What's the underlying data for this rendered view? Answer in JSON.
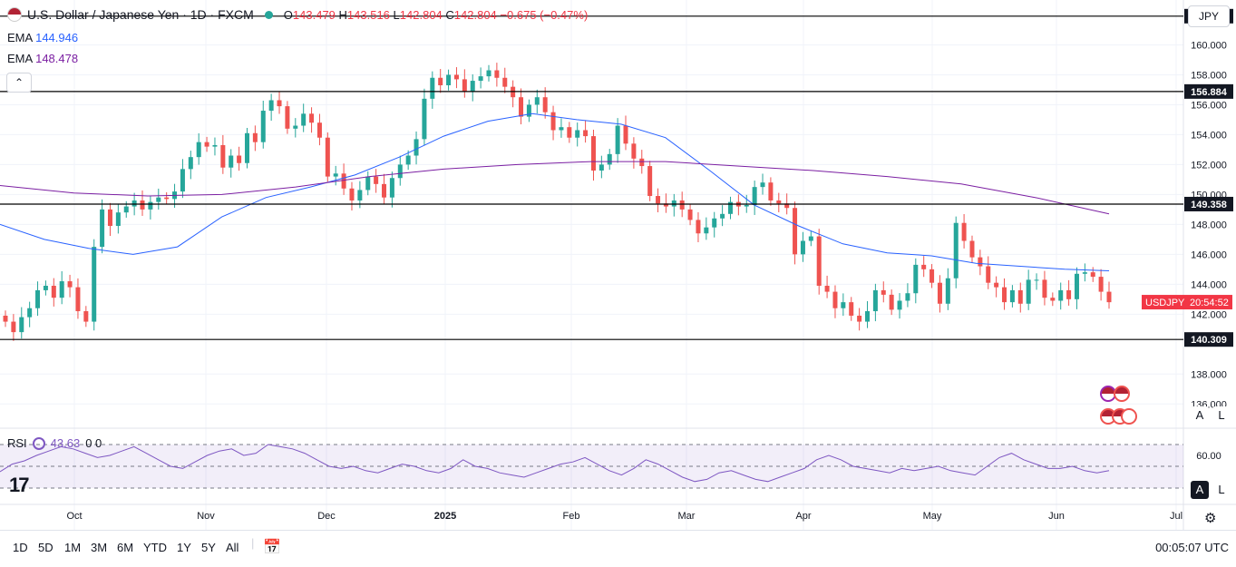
{
  "header": {
    "symbol_title": "U.S. Dollar / Japanese Yen · 1D · FXCM",
    "open_label": "O",
    "open": "143.479",
    "high_label": "H",
    "high": "143.516",
    "low_label": "L",
    "low": "142.804",
    "close_label": "C",
    "close": "142.804",
    "change": "−0.675 (−0.47%)"
  },
  "indicators": [
    {
      "name": "EMA",
      "value": "144.946",
      "color": "#2962ff"
    },
    {
      "name": "EMA",
      "value": "148.478",
      "color": "#7b1fa2"
    }
  ],
  "rsi": {
    "name": "RSI",
    "value": "43.63",
    "extra": "0 0",
    "color": "#7e57c2",
    "scale_label": "60.00"
  },
  "currency_button": "JPY",
  "collapse_glyph": "⌃",
  "scale_buttons": {
    "auto": "A",
    "log": "L"
  },
  "symbol_badge": {
    "symbol": "USDJPY",
    "countdown": "20:54:52"
  },
  "toolbar": {
    "ranges": [
      "1D",
      "5D",
      "1M",
      "3M",
      "6M",
      "YTD",
      "1Y",
      "5Y",
      "All"
    ],
    "clock": "00:05:07 UTC"
  },
  "logo": "17",
  "chart_data": {
    "type": "candlestick",
    "title": "U.S. Dollar / Japanese Yen",
    "y_axis": {
      "ylim": [
        134.5,
        163.0
      ],
      "tick_labels": [
        "160.000",
        "158.000",
        "156.000",
        "154.000",
        "152.000",
        "150.000",
        "148.000",
        "146.000",
        "144.000",
        "142.000",
        "138.000",
        "136.000"
      ],
      "ticks": [
        160,
        158,
        156,
        154,
        152,
        150,
        148,
        146,
        144,
        142,
        138,
        136
      ]
    },
    "x_axis": {
      "tick_labels": [
        "Oct",
        "Nov",
        "Dec",
        "2025",
        "Feb",
        "Mar",
        "Apr",
        "May",
        "Jun",
        "Jul"
      ]
    },
    "horizontal_levels": [
      161.92,
      156.884,
      149.358,
      140.309
    ],
    "level_labels": [
      "161.920",
      "156.884",
      "149.358",
      "140.309"
    ],
    "current_price": 142.804,
    "colors": {
      "up": "#26a69a",
      "down": "#ef5350",
      "ema_fast": "#2962ff",
      "ema_slow": "#7b1fa2",
      "rsi": "#7e57c2"
    },
    "close_series": [
      141.5,
      140.8,
      141.8,
      142.4,
      143.6,
      143.9,
      143.1,
      144.2,
      143.8,
      142.2,
      141.5,
      146.5,
      149.0,
      147.9,
      148.8,
      149.2,
      149.6,
      149.0,
      149.5,
      149.8,
      149.7,
      150.2,
      151.7,
      152.5,
      153.5,
      153.2,
      153.3,
      151.8,
      152.6,
      152.1,
      154.1,
      153.5,
      155.6,
      156.3,
      155.9,
      154.4,
      154.6,
      155.4,
      154.8,
      153.8,
      151.2,
      151.4,
      150.4,
      149.6,
      150.3,
      151.2,
      150.7,
      149.8,
      151.1,
      152.0,
      152.6,
      153.7,
      156.4,
      157.8,
      157.3,
      158.0,
      157.7,
      156.9,
      157.6,
      157.9,
      158.3,
      157.8,
      157.2,
      156.5,
      155.2,
      156.0,
      156.5,
      155.5,
      154.3,
      154.5,
      153.8,
      154.3,
      153.9,
      151.6,
      152.0,
      152.7,
      154.6,
      153.4,
      152.4,
      151.9,
      149.9,
      149.4,
      149.2,
      149.6,
      149.0,
      148.3,
      147.4,
      147.8,
      148.4,
      148.7,
      149.5,
      149.2,
      149.3,
      150.5,
      150.8,
      149.6,
      149.4,
      149.1,
      146.0,
      146.9,
      147.2,
      143.9,
      143.5,
      142.4,
      142.8,
      141.9,
      141.5,
      142.2,
      143.6,
      143.3,
      142.3,
      142.9,
      143.4,
      145.3,
      145.0,
      144.1,
      142.7,
      144.4,
      148.1,
      146.9,
      145.8,
      145.2,
      144.1,
      143.8,
      142.8,
      143.6,
      142.7,
      144.3,
      144.3,
      143.1,
      142.9,
      143.6,
      143.0,
      144.7,
      144.8,
      144.5,
      143.5,
      142.8
    ],
    "ema_fast_series": [
      148.0,
      147.0,
      146.4,
      146.0,
      146.5,
      148.5,
      149.8,
      150.5,
      151.3,
      152.5,
      153.9,
      154.9,
      155.4,
      155.0,
      154.7,
      153.8,
      151.6,
      149.3,
      147.9,
      146.7,
      146.1,
      145.9,
      145.4,
      145.2,
      145.0,
      144.9
    ],
    "ema_slow_series": [
      150.6,
      150.1,
      149.9,
      150.0,
      150.5,
      151.2,
      151.7,
      152.0,
      152.2,
      152.2,
      151.9,
      151.6,
      151.2,
      150.7,
      149.8,
      148.7
    ],
    "rsi_series": [
      45,
      52,
      55,
      60,
      64,
      68,
      66,
      62,
      58,
      60,
      64,
      68,
      62,
      56,
      50,
      48,
      54,
      60,
      64,
      66,
      60,
      62,
      70,
      68,
      66,
      62,
      56,
      50,
      48,
      50,
      46,
      44,
      48,
      52,
      50,
      46,
      44,
      48,
      56,
      50,
      48,
      44,
      42,
      40,
      44,
      48,
      52,
      54,
      58,
      52,
      46,
      42,
      48,
      56,
      52,
      46,
      40,
      36,
      38,
      44,
      46,
      42,
      38,
      36,
      40,
      44,
      48,
      56,
      60,
      56,
      50,
      48,
      46,
      44,
      48,
      46,
      48,
      50,
      46,
      44,
      42,
      50,
      58,
      62,
      56,
      52,
      48,
      48,
      50,
      46,
      44,
      46
    ]
  }
}
